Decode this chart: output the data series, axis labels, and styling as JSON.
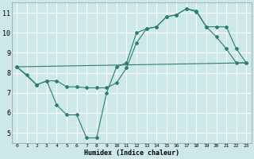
{
  "xlabel": "Humidex (Indice chaleur)",
  "background_color": "#cce8e8",
  "grid_color": "#ffffff",
  "line_color": "#2e7d6e",
  "xlim": [
    -0.5,
    23.5
  ],
  "ylim": [
    4.5,
    11.5
  ],
  "xticks": [
    0,
    1,
    2,
    3,
    4,
    5,
    6,
    7,
    8,
    9,
    10,
    11,
    12,
    13,
    14,
    15,
    16,
    17,
    18,
    19,
    20,
    21,
    22,
    23
  ],
  "yticks": [
    5,
    6,
    7,
    8,
    9,
    10,
    11
  ],
  "line1_x": [
    0,
    1,
    2,
    3,
    4,
    5,
    6,
    7,
    8,
    9,
    10,
    11,
    12,
    13,
    14,
    15,
    16,
    17,
    18,
    19,
    20,
    21,
    22,
    23
  ],
  "line1_y": [
    8.3,
    7.9,
    7.4,
    7.6,
    6.4,
    5.9,
    5.9,
    4.75,
    4.75,
    7.0,
    8.3,
    8.5,
    10.0,
    10.2,
    10.3,
    10.8,
    10.9,
    11.2,
    11.1,
    10.3,
    9.8,
    9.2,
    8.5,
    8.5
  ],
  "line2_x": [
    0,
    2,
    3,
    4,
    5,
    6,
    7,
    8,
    9,
    10,
    11,
    12,
    13,
    14,
    15,
    16,
    17,
    18,
    19,
    20,
    21,
    22,
    23
  ],
  "line2_y": [
    8.3,
    7.4,
    7.6,
    7.6,
    7.3,
    7.3,
    7.25,
    7.25,
    7.25,
    7.5,
    8.25,
    9.5,
    10.2,
    10.3,
    10.8,
    10.9,
    11.2,
    11.05,
    10.3,
    10.3,
    10.3,
    9.2,
    8.5
  ],
  "line3_x": [
    0,
    23
  ],
  "line3_y": [
    8.3,
    8.5
  ]
}
